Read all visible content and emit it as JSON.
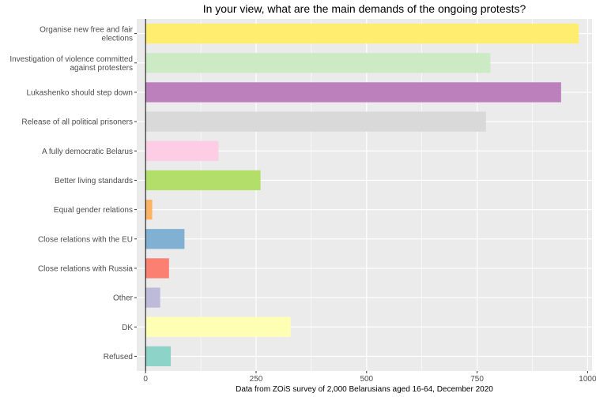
{
  "chart_data": {
    "type": "bar",
    "orientation": "horizontal",
    "title": "In your view, what are the main demands of the ongoing protests?",
    "xlabel": "Data from ZOiS survey of 2,000 Belarusians aged 16-64, December 2020",
    "ylabel": "",
    "xlim": [
      -20,
      1010
    ],
    "xticks": [
      0,
      250,
      500,
      750,
      1000
    ],
    "grid": true,
    "categories": [
      [
        "Organise new free and fair",
        "elections"
      ],
      [
        "Investigation of violence committed",
        "against protesters"
      ],
      [
        "Lukashenko should step down"
      ],
      [
        "Release of all political prisoners"
      ],
      [
        "A fully democratic Belarus"
      ],
      [
        "Better living standards"
      ],
      [
        "Equal gender relations"
      ],
      [
        "Close relations with the EU"
      ],
      [
        "Close relations with Russia"
      ],
      [
        "Other"
      ],
      [
        "DK"
      ],
      [
        "Refused"
      ]
    ],
    "values": [
      980,
      780,
      940,
      770,
      165,
      260,
      15,
      88,
      53,
      33,
      328,
      57
    ],
    "colors": [
      "#FFED6F",
      "#CCEBC5",
      "#BC80BD",
      "#D9D9D9",
      "#FCCDE5",
      "#B3DE69",
      "#FDB462",
      "#80B1D3",
      "#FB8072",
      "#BEBADA",
      "#FFFFB3",
      "#8DD3C7"
    ]
  }
}
